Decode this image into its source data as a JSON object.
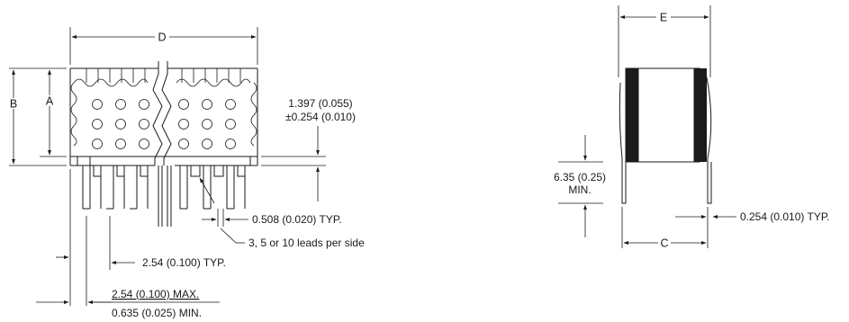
{
  "labels": {
    "dim_d": "D",
    "dim_a": "A",
    "dim_b": "B",
    "dim_e": "E",
    "dim_c": "C",
    "standoff_1": "1.397 (0.055)",
    "standoff_2": "±0.254 (0.010)",
    "lead_width": "0.508 (0.020) TYP.",
    "leads_per_side": "3, 5 or 10 leads per side",
    "pitch": "2.54 (0.100) TYP.",
    "offset_max": "2.54 (0.100) MAX.",
    "offset_min": "0.635 (0.025) MIN.",
    "lead_length_1": "6.35 (0.25)",
    "lead_length_2": "MIN.",
    "lead_thickness": "0.254 (0.010) TYP."
  }
}
